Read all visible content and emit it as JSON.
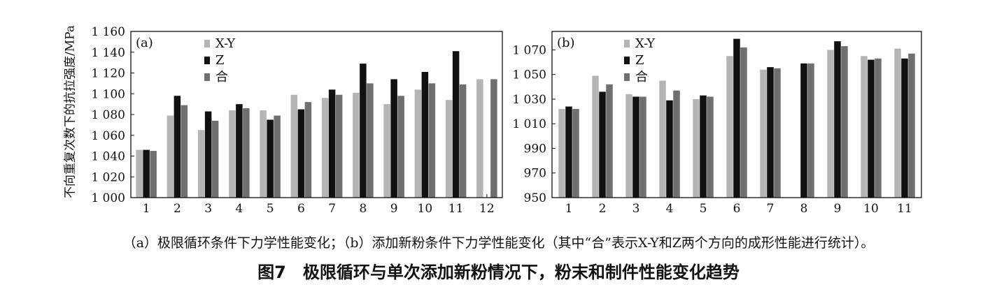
{
  "y_axis_title": "不向重复次数下的抗拉强度/MPa",
  "caption_sub": "（a）极限循环条件下力学性能变化；（b）添加新粉条件下力学性能变化（其中“合”表示X-Y和Z两个方向的成形性能进行统计）。",
  "caption_main": "图7　极限循环与单次添加新粉情况下，粉末和制件性能变化趋势",
  "colors": {
    "X-Y": "#b5b5b5",
    "Z": "#111111",
    "合": "#6f6f6f"
  },
  "chart_data": [
    {
      "type": "bar",
      "panel_label": "(a)",
      "categories": [
        "1",
        "2",
        "3",
        "4",
        "5",
        "6",
        "7",
        "8",
        "9",
        "10",
        "11",
        "12"
      ],
      "ylim": [
        1000,
        1160
      ],
      "yticks": [
        1000,
        1020,
        1040,
        1060,
        1080,
        1100,
        1120,
        1140,
        1160
      ],
      "ytick_labels": [
        "1 000",
        "1 020",
        "1 040",
        "1 060",
        "1 080",
        "1 100",
        "1 120",
        "1 140",
        "1 160"
      ],
      "legend_position": "top-left",
      "series": [
        {
          "name": "X-Y",
          "values": [
            1046,
            1079,
            1065,
            1084,
            1084,
            1099,
            1096,
            1101,
            1090,
            1104,
            1094,
            1114
          ]
        },
        {
          "name": "Z",
          "values": [
            1046,
            1098,
            1083,
            1090,
            1075,
            1085,
            1104,
            1129,
            1114,
            1121,
            1141,
            null
          ]
        },
        {
          "name": "合",
          "values": [
            1045,
            1089,
            1074,
            1086,
            1079,
            1092,
            1099,
            1110,
            1098,
            1110,
            1109,
            1114
          ]
        }
      ]
    },
    {
      "type": "bar",
      "panel_label": "(b)",
      "categories": [
        "1",
        "2",
        "3",
        "4",
        "5",
        "6",
        "7",
        "8",
        "9",
        "10",
        "11"
      ],
      "ylim": [
        950,
        1085
      ],
      "yticks": [
        950,
        970,
        990,
        1010,
        1030,
        1050,
        1070
      ],
      "ytick_labels": [
        "950",
        "970",
        "990",
        "1 010",
        "1 030",
        "1 050",
        "1 070"
      ],
      "legend_position": "top-left",
      "series": [
        {
          "name": "X-Y",
          "values": [
            1022,
            1049,
            1034,
            1045,
            1030,
            1065,
            1054,
            null,
            1070,
            1065,
            1071
          ]
        },
        {
          "name": "Z",
          "values": [
            1024,
            1036,
            1032,
            1029,
            1033,
            1079,
            1056,
            1059,
            1077,
            1062,
            1063
          ]
        },
        {
          "name": "合",
          "values": [
            1022,
            1042,
            1032,
            1037,
            1032,
            1072,
            1055,
            1059,
            1073,
            1063,
            1067
          ]
        }
      ]
    }
  ]
}
